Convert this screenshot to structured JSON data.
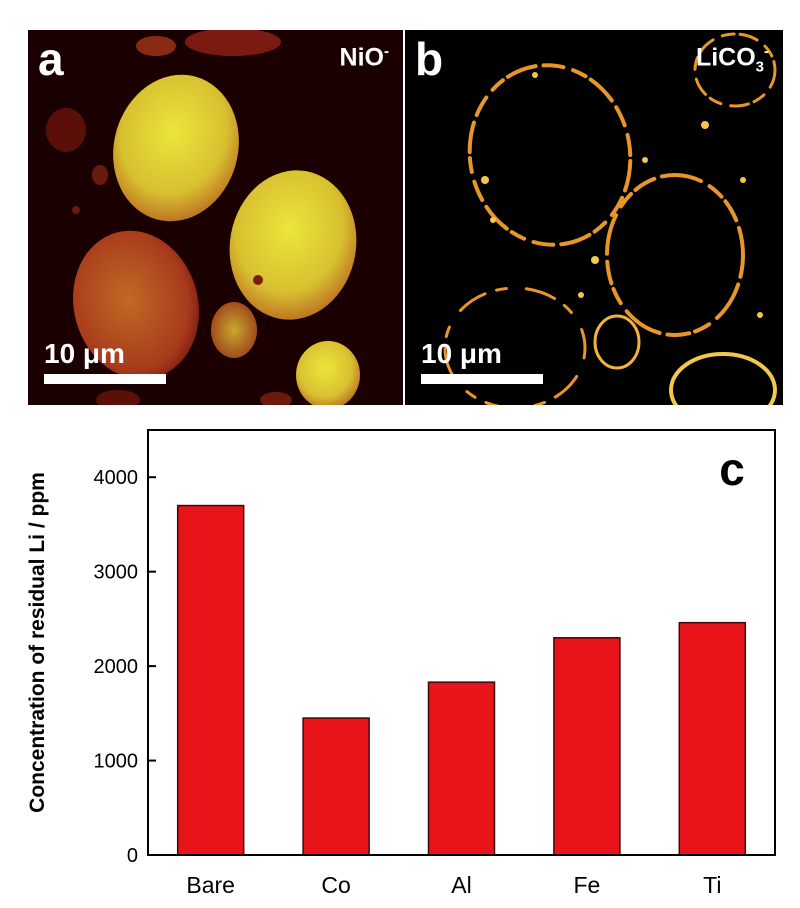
{
  "panels": [
    {
      "letter": "a",
      "ion_base": "NiO",
      "ion_sub": "",
      "ion_charge": "-",
      "scale_label": "10 μm"
    },
    {
      "letter": "b",
      "ion_base": "LiCO",
      "ion_sub": "3",
      "ion_charge": "-",
      "scale_label": "10 μm"
    }
  ],
  "colors": {
    "bar_fill": "#e8141a",
    "bar_stroke": "#3a0a0a",
    "particle_bright": "#e8e03a",
    "particle_dim": "#b8321c",
    "rim": "#f3b33a",
    "background": "#000000"
  },
  "chart_data": {
    "type": "bar",
    "panel_label": "c",
    "categories": [
      "Bare",
      "Co",
      "Al",
      "Fe",
      "Ti"
    ],
    "values": [
      3700,
      1450,
      1830,
      2300,
      2460
    ],
    "ylabel": "Concentration of residual Li / ppm",
    "xlabel": "",
    "ylim": [
      0,
      4500
    ],
    "yticks": [
      0,
      1000,
      2000,
      3000,
      4000
    ],
    "grid": false,
    "legend": "none"
  }
}
